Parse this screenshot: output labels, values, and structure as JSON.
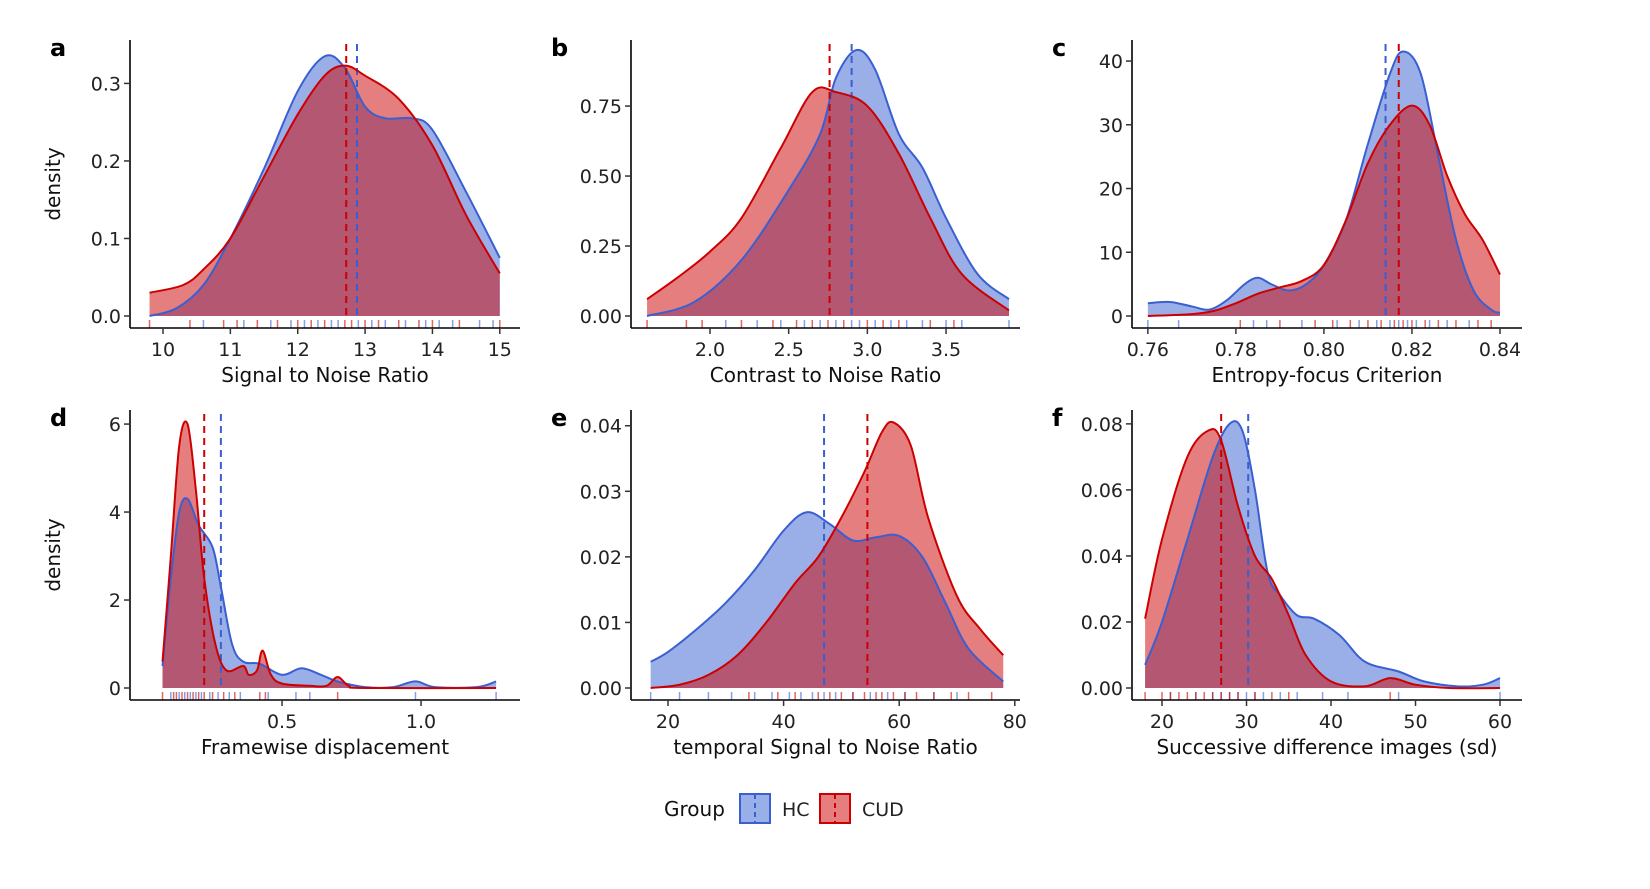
{
  "colors": {
    "HC_line": "#3a5fd1",
    "HC_fill": "#3560d0",
    "CUD_line": "#cc0000",
    "CUD_fill": "#cc0000"
  },
  "legend": {
    "title": "Group",
    "entries": [
      "HC",
      "CUD"
    ],
    "placement": "bottom"
  },
  "chart_data": [
    {
      "type": "area",
      "panel": "a",
      "xlabel": "Signal to Noise Ratio",
      "ylabel": "density",
      "xlim": [
        9.51,
        15.3
      ],
      "ylim": [
        0,
        0.356
      ],
      "xticks": [
        10,
        11,
        12,
        13,
        14,
        15
      ],
      "yticks": [
        0.0,
        0.1,
        0.2,
        0.3
      ],
      "ytick_labels": [
        "0.0",
        "0.1",
        "0.2",
        "0.3"
      ],
      "xtick_labels": [
        "10",
        "11",
        "12",
        "13",
        "14",
        "15"
      ],
      "series": [
        {
          "name": "HC",
          "mean": 12.88,
          "x": [
            9.8,
            10.2,
            10.6,
            11,
            11.5,
            12,
            12.4,
            12.7,
            13,
            13.3,
            13.7,
            14,
            14.5,
            15
          ],
          "y": [
            0,
            0.01,
            0.04,
            0.1,
            0.19,
            0.29,
            0.335,
            0.32,
            0.27,
            0.255,
            0.255,
            0.24,
            0.16,
            0.075
          ],
          "rug": [
            10.6,
            11.2,
            11.6,
            11.9,
            12.1,
            12.3,
            12.5,
            12.6,
            12.9,
            13.1,
            13.3,
            13.6,
            13.9,
            14.1,
            14.3,
            14.7,
            14.9
          ]
        },
        {
          "name": "CUD",
          "mean": 12.72,
          "x": [
            9.8,
            10.3,
            10.6,
            11,
            11.5,
            12,
            12.4,
            12.7,
            13,
            13.5,
            14,
            14.5,
            15
          ],
          "y": [
            0.03,
            0.04,
            0.06,
            0.1,
            0.18,
            0.26,
            0.31,
            0.323,
            0.31,
            0.28,
            0.22,
            0.13,
            0.055
          ],
          "rug": [
            9.8,
            10.4,
            10.9,
            11.1,
            11.4,
            11.7,
            12.0,
            12.2,
            12.4,
            12.7,
            12.8,
            13.0,
            13.2,
            13.5,
            13.8,
            14.0,
            14.4,
            15.0
          ]
        }
      ]
    },
    {
      "type": "area",
      "panel": "b",
      "xlabel": "Contrast to Noise Ratio",
      "ylabel": "",
      "xlim": [
        1.498,
        3.97
      ],
      "ylim": [
        0,
        0.986
      ],
      "xticks": [
        2.0,
        2.5,
        3.0,
        3.5
      ],
      "xtick_labels": [
        "2.0",
        "2.5",
        "3.0",
        "3.5"
      ],
      "yticks": [
        0,
        0.25,
        0.5,
        0.75
      ],
      "ytick_labels": [
        "0.00",
        "0.25",
        "0.50",
        "0.75"
      ],
      "series": [
        {
          "name": "HC",
          "mean": 2.9,
          "x": [
            1.6,
            1.9,
            2.2,
            2.5,
            2.7,
            2.8,
            2.93,
            3.05,
            3.2,
            3.35,
            3.5,
            3.7,
            3.9
          ],
          "y": [
            0,
            0.05,
            0.2,
            0.45,
            0.65,
            0.85,
            0.95,
            0.88,
            0.65,
            0.53,
            0.35,
            0.15,
            0.06
          ],
          "rug": [
            2.1,
            2.3,
            2.45,
            2.6,
            2.7,
            2.8,
            2.9,
            2.95,
            3.05,
            3.15,
            3.25,
            3.35,
            3.5,
            3.6,
            3.9
          ]
        },
        {
          "name": "CUD",
          "mean": 2.76,
          "x": [
            1.6,
            1.8,
            2.0,
            2.2,
            2.45,
            2.65,
            2.8,
            3.0,
            3.2,
            3.4,
            3.6,
            3.9
          ],
          "y": [
            0.06,
            0.14,
            0.23,
            0.35,
            0.6,
            0.8,
            0.8,
            0.75,
            0.58,
            0.35,
            0.15,
            0.02
          ],
          "rug": [
            1.6,
            1.85,
            1.95,
            2.2,
            2.4,
            2.55,
            2.65,
            2.75,
            2.85,
            3.0,
            3.1,
            3.2,
            3.4,
            3.55
          ]
        }
      ]
    },
    {
      "type": "area",
      "panel": "c",
      "xlabel": "Entropy-focus Criterion",
      "ylabel": "",
      "xlim": [
        0.7564,
        0.845
      ],
      "ylim": [
        0,
        43.3
      ],
      "xticks": [
        0.76,
        0.78,
        0.8,
        0.82,
        0.84
      ],
      "xtick_labels": [
        "0.76",
        "0.78",
        "0.80",
        "0.82",
        "0.84"
      ],
      "yticks": [
        0,
        10,
        20,
        30,
        40
      ],
      "ytick_labels": [
        "0",
        "10",
        "20",
        "30",
        "40"
      ],
      "series": [
        {
          "name": "HC",
          "mean": 0.814,
          "x": [
            0.76,
            0.765,
            0.77,
            0.774,
            0.778,
            0.782,
            0.785,
            0.788,
            0.792,
            0.796,
            0.8,
            0.805,
            0.81,
            0.815,
            0.818,
            0.822,
            0.826,
            0.83,
            0.834,
            0.838,
            0.84
          ],
          "y": [
            2,
            2.2,
            1.5,
            1,
            2.5,
            5,
            6,
            5,
            4,
            5,
            8,
            15,
            27,
            38,
            41.5,
            38,
            25,
            12,
            4,
            1,
            0.5
          ],
          "rug": [
            0.76,
            0.767,
            0.784,
            0.787,
            0.795,
            0.803,
            0.808,
            0.812,
            0.815,
            0.817,
            0.819,
            0.821,
            0.824,
            0.828,
            0.833
          ]
        },
        {
          "name": "CUD",
          "mean": 0.817,
          "x": [
            0.76,
            0.77,
            0.775,
            0.78,
            0.785,
            0.79,
            0.795,
            0.8,
            0.805,
            0.81,
            0.815,
            0.82,
            0.824,
            0.828,
            0.832,
            0.836,
            0.84
          ],
          "y": [
            0,
            0.3,
            0.8,
            2,
            3.5,
            4.5,
            5.5,
            8,
            15,
            24,
            30,
            33,
            30,
            22,
            16,
            12,
            6.5
          ],
          "rug": [
            0.781,
            0.79,
            0.798,
            0.802,
            0.806,
            0.81,
            0.813,
            0.816,
            0.818,
            0.82,
            0.823,
            0.826,
            0.83,
            0.835,
            0.838
          ]
        }
      ]
    },
    {
      "type": "area",
      "panel": "d",
      "xlabel": "Framewise displacement",
      "ylabel": "density",
      "xlim": [
        -0.047,
        1.356
      ],
      "ylim": [
        0,
        6.32
      ],
      "xticks": [
        0.5,
        1.0
      ],
      "xtick_labels": [
        "0.5",
        "1.0"
      ],
      "yticks": [
        0,
        2,
        4,
        6
      ],
      "ytick_labels": [
        "0",
        "2",
        "4",
        "6"
      ],
      "series": [
        {
          "name": "HC",
          "mean": 0.28,
          "x": [
            0.07,
            0.1,
            0.13,
            0.16,
            0.2,
            0.25,
            0.28,
            0.32,
            0.36,
            0.42,
            0.5,
            0.57,
            0.64,
            0.7,
            0.8,
            0.9,
            0.98,
            1.05,
            1.2,
            1.27
          ],
          "y": [
            0.5,
            2.5,
            4,
            4.3,
            3.7,
            3.2,
            2.3,
            1,
            0.6,
            0.55,
            0.3,
            0.45,
            0.3,
            0.15,
            0.02,
            0.02,
            0.15,
            0.02,
            0.02,
            0.15
          ],
          "rug": [
            0.1,
            0.13,
            0.15,
            0.17,
            0.19,
            0.21,
            0.24,
            0.27,
            0.31,
            0.35,
            0.45,
            0.55,
            0.6,
            0.98,
            1.27
          ]
        },
        {
          "name": "CUD",
          "mean": 0.22,
          "x": [
            0.07,
            0.1,
            0.13,
            0.16,
            0.19,
            0.22,
            0.26,
            0.3,
            0.36,
            0.38,
            0.41,
            0.43,
            0.46,
            0.5,
            0.6,
            0.66,
            0.7,
            0.74,
            0.8,
            1.27
          ],
          "y": [
            0.6,
            3,
            5.5,
            6,
            4.5,
            2.5,
            1,
            0.4,
            0.5,
            0.3,
            0.4,
            0.85,
            0.3,
            0.1,
            0.05,
            0.05,
            0.25,
            0.05,
            0,
            0
          ],
          "rug": [
            0.07,
            0.11,
            0.12,
            0.14,
            0.16,
            0.18,
            0.2,
            0.22,
            0.25,
            0.29,
            0.33,
            0.42,
            0.44,
            0.7
          ]
        }
      ]
    },
    {
      "type": "area",
      "panel": "e",
      "xlabel": "temporal Signal to Noise Ratio",
      "ylabel": "",
      "xlim": [
        13.6,
        80.9
      ],
      "ylim": [
        0,
        0.0424
      ],
      "xticks": [
        20,
        40,
        60,
        80
      ],
      "xtick_labels": [
        "20",
        "40",
        "60",
        "80"
      ],
      "yticks": [
        0,
        0.01,
        0.02,
        0.03,
        0.04
      ],
      "ytick_labels": [
        "0.00",
        "0.01",
        "0.02",
        "0.03",
        "0.04"
      ],
      "series": [
        {
          "name": "HC",
          "mean": 47,
          "x": [
            17,
            20,
            25,
            30,
            35,
            40,
            44,
            48,
            52,
            56,
            60,
            64,
            68,
            72,
            78
          ],
          "y": [
            0.004,
            0.0055,
            0.009,
            0.013,
            0.018,
            0.024,
            0.0268,
            0.025,
            0.0225,
            0.023,
            0.0232,
            0.02,
            0.013,
            0.006,
            0.001
          ],
          "rug": [
            17,
            22,
            27,
            31,
            35,
            38,
            41,
            43,
            45,
            47,
            49,
            52,
            55,
            58,
            61,
            66,
            70
          ]
        },
        {
          "name": "CUD",
          "mean": 54.5,
          "x": [
            17,
            22,
            27,
            32,
            37,
            42,
            46,
            50,
            54,
            57,
            59,
            62,
            65,
            70,
            74,
            78
          ],
          "y": [
            0,
            0.0005,
            0.002,
            0.005,
            0.01,
            0.016,
            0.02,
            0.026,
            0.033,
            0.039,
            0.0405,
            0.037,
            0.026,
            0.014,
            0.009,
            0.005
          ],
          "rug": [
            34,
            39,
            42,
            46,
            48,
            50,
            52,
            54,
            56,
            57,
            59,
            61,
            63,
            66,
            69,
            72,
            76
          ]
        }
      ]
    },
    {
      "type": "area",
      "panel": "f",
      "xlabel": "Successive difference images (sd)",
      "ylabel": "",
      "xlim": [
        16.45,
        62.6
      ],
      "ylim": [
        0,
        0.0842
      ],
      "xticks": [
        20,
        30,
        40,
        50,
        60
      ],
      "xtick_labels": [
        "20",
        "30",
        "40",
        "50",
        "60"
      ],
      "yticks": [
        0,
        0.02,
        0.04,
        0.06,
        0.08
      ],
      "ytick_labels": [
        "0.00",
        "0.02",
        "0.04",
        "0.06",
        "0.08"
      ],
      "series": [
        {
          "name": "HC",
          "mean": 30.2,
          "x": [
            18,
            20,
            23,
            26,
            28,
            29.5,
            31,
            32.5,
            34,
            36,
            38,
            41,
            44,
            48,
            51,
            55,
            58,
            60
          ],
          "y": [
            0.007,
            0.02,
            0.045,
            0.07,
            0.08,
            0.078,
            0.06,
            0.035,
            0.028,
            0.022,
            0.021,
            0.016,
            0.008,
            0.005,
            0.002,
            0.0005,
            0.001,
            0.003
          ],
          "rug": [
            21,
            24,
            26,
            27,
            28,
            29,
            30,
            31,
            32,
            34,
            36,
            39,
            42,
            48,
            60
          ]
        },
        {
          "name": "CUD",
          "mean": 27,
          "x": [
            18,
            20,
            23,
            25.5,
            27,
            29,
            31,
            33,
            35,
            37,
            40,
            44,
            47,
            50,
            54,
            60
          ],
          "y": [
            0.021,
            0.045,
            0.07,
            0.078,
            0.075,
            0.055,
            0.04,
            0.033,
            0.022,
            0.01,
            0.002,
            0.0005,
            0.003,
            0.001,
            0,
            0
          ],
          "rug": [
            18,
            20,
            21,
            22,
            23,
            24,
            25,
            26,
            27,
            28,
            29,
            31,
            33,
            35,
            47
          ]
        }
      ]
    }
  ]
}
